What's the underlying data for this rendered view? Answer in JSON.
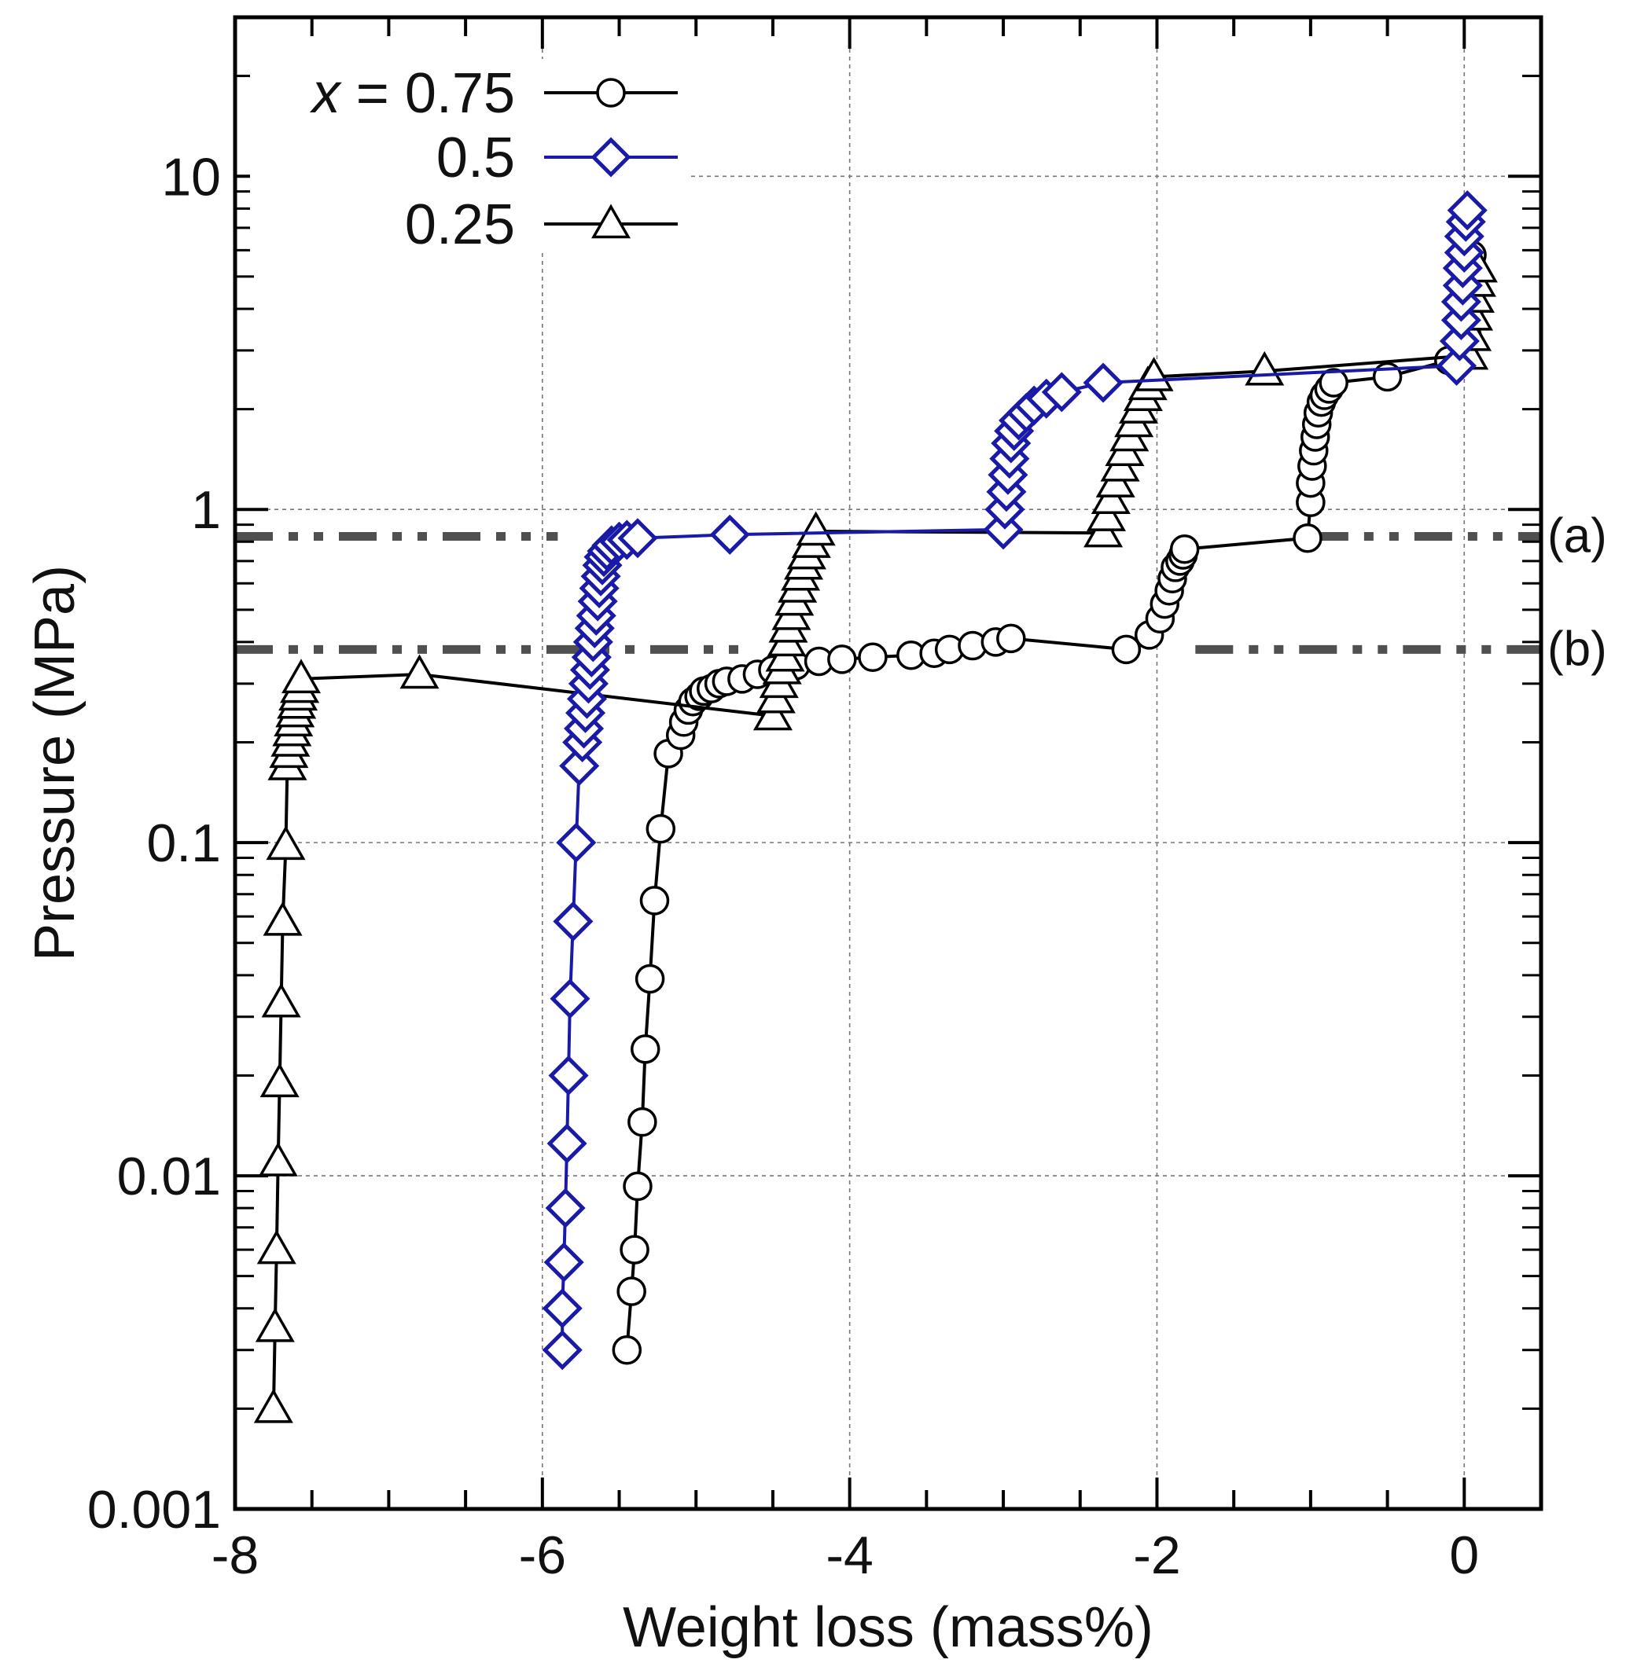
{
  "chart_data": {
    "type": "scatter",
    "title": "",
    "xlabel": "Weight loss (mass%)",
    "ylabel": "Pressure (MPa)",
    "xscale": "linear",
    "yscale": "log",
    "xlim": [
      -8,
      0.5
    ],
    "ylim": [
      0.001,
      30
    ],
    "xticks": [
      -8,
      -6,
      -4,
      -2,
      0
    ],
    "xtick_labels": [
      "-8",
      "-6",
      "-4",
      "-2",
      "0"
    ],
    "yticks": [
      0.001,
      0.01,
      0.1,
      1,
      10
    ],
    "ytick_labels": [
      "0.001",
      "0.01",
      "0.1",
      "1",
      "10"
    ],
    "grid": true,
    "legend": {
      "position": "top-left",
      "prefix": "x",
      "equals": " = ",
      "entries": [
        "0.75",
        "0.5",
        "0.25"
      ]
    },
    "reference_lines": [
      {
        "label": "(a)",
        "y": 0.83,
        "style": "dash-dot-dot",
        "color": "#505050",
        "gaps": [
          [
            -5.9,
            -1.0
          ]
        ]
      },
      {
        "label": "(b)",
        "y": 0.38,
        "style": "dash-dot-dot",
        "color": "#505050",
        "gaps": [
          [
            -4.65,
            -1.75
          ]
        ]
      }
    ],
    "series": [
      {
        "name": "0.75",
        "marker": "circle",
        "color": "#000000",
        "x": [
          -5.45,
          -5.42,
          -5.4,
          -5.38,
          -5.35,
          -5.33,
          -5.3,
          -5.27,
          -5.23,
          -5.18,
          -5.1,
          -5.08,
          -5.05,
          -5.02,
          -4.98,
          -4.95,
          -4.9,
          -4.85,
          -4.8,
          -4.7,
          -4.6,
          -4.5,
          -4.35,
          -4.2,
          -4.05,
          -3.85,
          -3.6,
          -3.45,
          -3.35,
          -3.2,
          -3.05,
          -2.95,
          -2.2,
          -2.05,
          -1.98,
          -1.95,
          -1.92,
          -1.9,
          -1.88,
          -1.85,
          -1.83,
          -1.82,
          -1.02,
          -1.0,
          -1.0,
          -0.99,
          -0.98,
          -0.97,
          -0.96,
          -0.95,
          -0.93,
          -0.91,
          -0.88,
          -0.85,
          -0.5,
          -0.1,
          0.02,
          0.03,
          0.04,
          0.04,
          0.05,
          0.05
        ],
        "y": [
          0.003,
          0.0045,
          0.006,
          0.0093,
          0.0145,
          0.024,
          0.039,
          0.067,
          0.11,
          0.185,
          0.21,
          0.23,
          0.25,
          0.265,
          0.275,
          0.285,
          0.29,
          0.3,
          0.305,
          0.31,
          0.32,
          0.33,
          0.34,
          0.35,
          0.355,
          0.36,
          0.365,
          0.37,
          0.38,
          0.39,
          0.4,
          0.41,
          0.38,
          0.42,
          0.47,
          0.52,
          0.57,
          0.62,
          0.67,
          0.7,
          0.73,
          0.76,
          0.82,
          1.05,
          1.2,
          1.35,
          1.5,
          1.65,
          1.8,
          1.95,
          2.1,
          2.2,
          2.3,
          2.4,
          2.5,
          2.8,
          3.3,
          3.8,
          4.3,
          4.8,
          5.3,
          5.8
        ]
      },
      {
        "name": "0.5",
        "marker": "diamond",
        "color": "#1a1aa8",
        "x": [
          -5.87,
          -5.87,
          -5.86,
          -5.85,
          -5.84,
          -5.83,
          -5.82,
          -5.8,
          -5.78,
          -5.76,
          -5.74,
          -5.73,
          -5.72,
          -5.71,
          -5.7,
          -5.69,
          -5.68,
          -5.67,
          -5.66,
          -5.65,
          -5.64,
          -5.63,
          -5.62,
          -5.61,
          -5.6,
          -5.58,
          -5.55,
          -5.5,
          -5.45,
          -5.38,
          -4.78,
          -3.0,
          -2.99,
          -2.98,
          -2.97,
          -2.96,
          -2.95,
          -2.93,
          -2.9,
          -2.85,
          -2.8,
          -2.72,
          -2.62,
          -2.35,
          -0.05,
          -0.03,
          -0.02,
          -0.02,
          -0.01,
          -0.01,
          0.0,
          0.0,
          0.01,
          0.02
        ],
        "y": [
          0.003,
          0.004,
          0.0055,
          0.008,
          0.0125,
          0.02,
          0.034,
          0.058,
          0.1,
          0.17,
          0.2,
          0.22,
          0.245,
          0.27,
          0.3,
          0.33,
          0.36,
          0.4,
          0.44,
          0.48,
          0.53,
          0.58,
          0.63,
          0.68,
          0.72,
          0.75,
          0.78,
          0.8,
          0.81,
          0.82,
          0.84,
          0.87,
          1.0,
          1.13,
          1.27,
          1.42,
          1.58,
          1.72,
          1.85,
          1.95,
          2.05,
          2.15,
          2.25,
          2.4,
          2.7,
          3.2,
          3.7,
          4.2,
          4.7,
          5.3,
          5.9,
          6.6,
          7.3,
          7.9
        ]
      },
      {
        "name": "0.25",
        "marker": "triangle",
        "color": "#000000",
        "x": [
          -7.75,
          -7.74,
          -7.73,
          -7.72,
          -7.71,
          -7.7,
          -7.69,
          -7.67,
          -7.66,
          -7.65,
          -7.64,
          -7.63,
          -7.62,
          -7.61,
          -7.6,
          -7.59,
          -7.58,
          -7.57,
          -6.8,
          -4.5,
          -4.48,
          -4.46,
          -4.44,
          -4.42,
          -4.41,
          -4.4,
          -4.38,
          -4.36,
          -4.34,
          -4.32,
          -4.3,
          -4.28,
          -4.25,
          -4.22,
          -2.35,
          -2.33,
          -2.3,
          -2.27,
          -2.24,
          -2.21,
          -2.18,
          -2.15,
          -2.12,
          -2.09,
          -2.06,
          -2.02,
          -1.3,
          0.03,
          0.05,
          0.06,
          0.07,
          0.08,
          0.09
        ],
        "y": [
          0.002,
          0.0035,
          0.006,
          0.011,
          0.019,
          0.033,
          0.058,
          0.098,
          0.17,
          0.185,
          0.2,
          0.215,
          0.23,
          0.245,
          0.26,
          0.275,
          0.29,
          0.31,
          0.32,
          0.24,
          0.27,
          0.3,
          0.33,
          0.36,
          0.4,
          0.44,
          0.48,
          0.53,
          0.58,
          0.63,
          0.68,
          0.73,
          0.79,
          0.86,
          0.85,
          0.95,
          1.07,
          1.2,
          1.34,
          1.49,
          1.65,
          1.82,
          2.0,
          2.18,
          2.35,
          2.5,
          2.6,
          2.9,
          3.3,
          3.8,
          4.3,
          4.8,
          5.3
        ]
      }
    ]
  }
}
